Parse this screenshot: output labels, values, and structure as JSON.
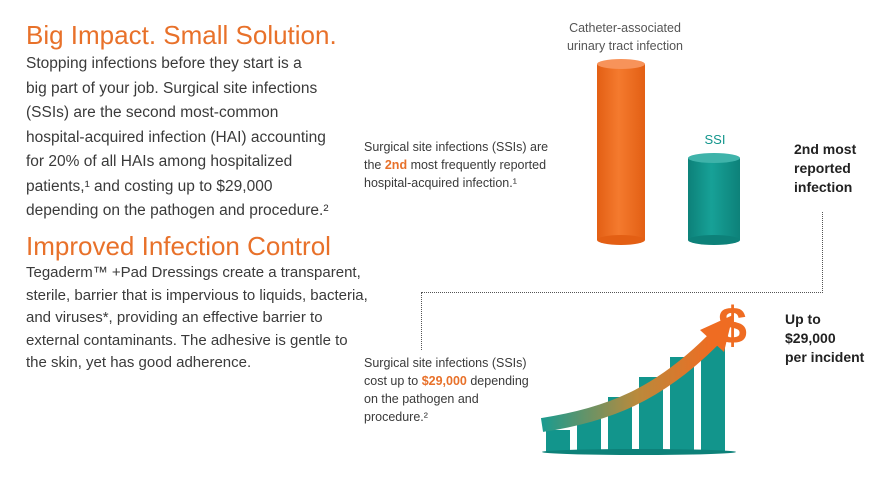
{
  "section1": {
    "heading": "Big Impact. Small Solution.",
    "paragraph_lines": [
      "Stopping infections before they start is a",
      "big part of your job. Surgical site infections",
      "(SSIs) are the second most-common",
      "hospital-acquired infection (HAI) accounting",
      "for 20% of all HAIs among hospitalized",
      "patients,¹ and costing up to $29,000",
      "depending on the pathogen and procedure.²"
    ]
  },
  "section2": {
    "heading": "Improved Infection Control",
    "paragraph_lines": [
      "Tegaderm™ +Pad Dressings create a transparent,",
      "sterile, barrier that is impervious to liquids, bacteria,",
      "and viruses*, providing an effective barrier to",
      "external contaminants. The adhesive is gentle to",
      "the skin, yet has good adherence."
    ]
  },
  "infographic": {
    "bar_chart": {
      "bars": [
        {
          "label_lines": [
            "Catheter-associated",
            "urinary tract infection"
          ],
          "rank": 1,
          "color": "#ef6c22"
        },
        {
          "label_lines": [
            "SSI"
          ],
          "rank": 2,
          "color": "#12958c"
        }
      ],
      "callout_pre": "Surgical site infections (SSIs) are",
      "callout_the": "the ",
      "callout_highlight": "2nd",
      "callout_post": " most frequently reported",
      "callout_line3": "hospital-acquired infection.¹",
      "side_label_lines": [
        "2nd most",
        "reported",
        "infection"
      ]
    },
    "cost": {
      "callout_line1": "Surgical site infections (SSIs)",
      "callout_pre": "cost up to ",
      "callout_highlight": "$29,000",
      "callout_post": " depending",
      "callout_line3": "on the pathogen and",
      "callout_line4": "procedure.²",
      "dollar_symbol": "$",
      "side_label_lines": [
        "Up to",
        "$29,000",
        "per incident"
      ],
      "growth_bars": [
        0.2,
        0.35,
        0.5,
        0.68,
        0.86,
        1.0
      ]
    }
  }
}
